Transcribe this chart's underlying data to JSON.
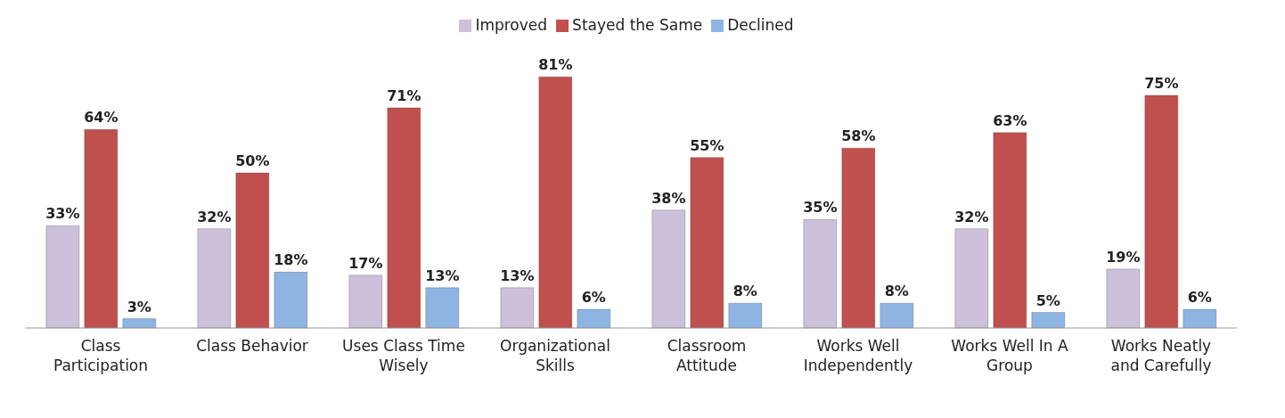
{
  "chart_data": {
    "type": "bar",
    "categories": [
      "Class Participation",
      "Class Behavior",
      "Uses Class Time Wisely",
      "Organizational Skills",
      "Classroom Attitude",
      "Works Well Independently",
      "Works Well In A Group",
      "Works Neatly and Carefully"
    ],
    "series": [
      {
        "name": "Improved",
        "color": "#ccc0da",
        "values": [
          33,
          32,
          17,
          13,
          38,
          35,
          32,
          19
        ],
        "value_labels": [
          "33%",
          "32%",
          "17%",
          "13%",
          "38%",
          "35%",
          "32%",
          "19%"
        ]
      },
      {
        "name": "Stayed the Same",
        "color": "#c0504d",
        "values": [
          64,
          50,
          71,
          81,
          55,
          58,
          63,
          75
        ],
        "value_labels": [
          "64%",
          "50%",
          "71%",
          "81%",
          "55%",
          "58%",
          "63%",
          "75%"
        ]
      },
      {
        "name": "Declined",
        "color": "#8eb4e3",
        "values": [
          3,
          18,
          13,
          6,
          8,
          8,
          5,
          6
        ],
        "value_labels": [
          "3%",
          "18%",
          "13%",
          "6%",
          "8%",
          "8%",
          "5%",
          "6%"
        ]
      }
    ],
    "legend": "top",
    "grid": false
  }
}
